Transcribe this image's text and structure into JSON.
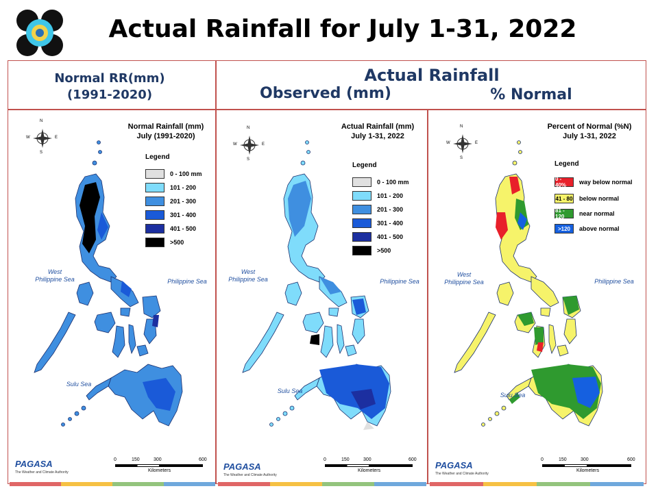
{
  "slide_title": "Actual Rainfall for July 1-31, 2022",
  "header": {
    "normal_line1": "Normal RR(mm)",
    "normal_line2": "(1991-2020)",
    "actual": "Actual Rainfall",
    "observed": "Observed (mm)",
    "percent_normal": "% Normal"
  },
  "maps": [
    {
      "title_line1": "Normal Rainfall (mm)",
      "title_line2": "July (1991-2020)",
      "legend_title": "Legend",
      "legend": [
        {
          "label": "0 - 100 mm",
          "color": "#e0e0e0"
        },
        {
          "label": "101 - 200",
          "color": "#7fdcfb"
        },
        {
          "label": "201 - 300",
          "color": "#3f8fe0"
        },
        {
          "label": "301 - 400",
          "color": "#1a5ad8"
        },
        {
          "label": "401 - 500",
          "color": "#1c2fa0"
        },
        {
          "label": ">500",
          "color": "#000000"
        }
      ]
    },
    {
      "title_line1": "Actual Rainfall (mm)",
      "title_line2": "July 1-31, 2022",
      "legend_title": "Legend",
      "legend": [
        {
          "label": "0 - 100 mm",
          "color": "#e0e0e0"
        },
        {
          "label": "101 - 200",
          "color": "#7fdcfb"
        },
        {
          "label": "201 - 300",
          "color": "#3f8fe0"
        },
        {
          "label": "301 - 400",
          "color": "#1a5ad8"
        },
        {
          "label": "401 - 500",
          "color": "#1c2fa0"
        },
        {
          "label": ">500",
          "color": "#000000"
        }
      ]
    },
    {
      "title_line1": "Percent of Normal (%N)",
      "title_line2": "July 1-31, 2022",
      "legend_title": "Legend",
      "legend": [
        {
          "swatch": "0 - 40%",
          "label": "way below normal",
          "color": "#e8202a"
        },
        {
          "swatch": "41 - 80",
          "label": "below normal",
          "color": "#f6f36a"
        },
        {
          "swatch": "81 - 120",
          "label": "near normal",
          "color": "#2f9a2f"
        },
        {
          "swatch": ">120",
          "label": "above normal",
          "color": "#1560e0"
        }
      ]
    }
  ],
  "seas": {
    "west_line1": "West",
    "west_line2": "Philippine Sea",
    "east": "Philippine Sea",
    "sulu": "Sulu Sea"
  },
  "compass": {
    "n": "N",
    "e": "E",
    "w": "W",
    "s": "S"
  },
  "scale": {
    "ticks": [
      "0",
      "150",
      "300",
      "600"
    ],
    "unit": "Kilometers"
  },
  "brand": {
    "name": "PAGASA",
    "sub": "The Weather and Climate Authority"
  },
  "bottom_bar_colors": [
    "#e06666",
    "#f6c143",
    "#93c47d",
    "#6fa8dc"
  ]
}
